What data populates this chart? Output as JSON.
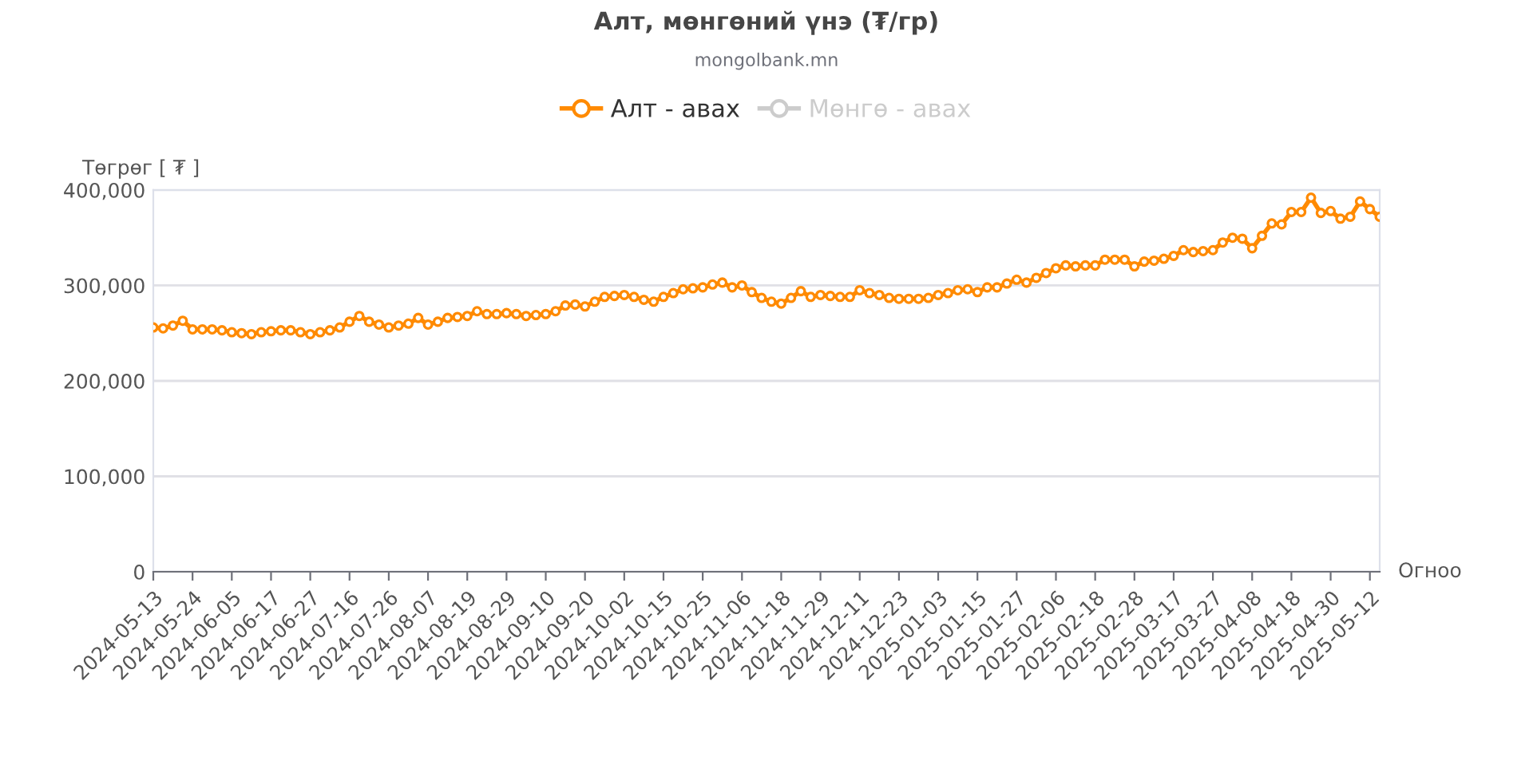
{
  "chart_data": {
    "type": "line",
    "title": "Алт, мөнгөний үнэ (₮/гр)",
    "subtitle": "mongolbank.mn",
    "ylabel": "Төгрөг [ ₮ ]",
    "xlabel": "Огноо",
    "categories": [
      "2024-05-13",
      null,
      null,
      null,
      "2024-05-24",
      null,
      null,
      null,
      "2024-06-05",
      null,
      null,
      null,
      "2024-06-17",
      null,
      null,
      null,
      "2024-06-27",
      null,
      null,
      null,
      "2024-07-16",
      null,
      null,
      null,
      "2024-07-26",
      null,
      null,
      null,
      "2024-08-07",
      null,
      null,
      null,
      "2024-08-19",
      null,
      null,
      null,
      "2024-08-29",
      null,
      null,
      null,
      "2024-09-10",
      null,
      null,
      null,
      "2024-09-20",
      null,
      null,
      null,
      "2024-10-02",
      null,
      null,
      null,
      "2024-10-15",
      null,
      null,
      null,
      "2024-10-25",
      null,
      null,
      null,
      "2024-11-06",
      null,
      null,
      null,
      "2024-11-18",
      null,
      null,
      null,
      "2024-11-29",
      null,
      null,
      null,
      "2024-12-11",
      null,
      null,
      null,
      "2024-12-23",
      null,
      null,
      null,
      "2025-01-03",
      null,
      null,
      null,
      "2025-01-15",
      null,
      null,
      null,
      "2025-01-27",
      null,
      null,
      null,
      "2025-02-06",
      null,
      null,
      null,
      "2025-02-18",
      null,
      null,
      null,
      "2025-02-28",
      null,
      null,
      null,
      "2025-03-17",
      null,
      null,
      null,
      "2025-03-27",
      null,
      null,
      null,
      "2025-04-08",
      null,
      null,
      null,
      "2025-04-18",
      null,
      null,
      null,
      "2025-04-30",
      null,
      null,
      null,
      "2025-05-12",
      null
    ],
    "series": [
      {
        "name": "Алт - авах",
        "color": "#ff8a00",
        "values": [
          256000,
          255000,
          258000,
          263000,
          254000,
          254000,
          254000,
          253000,
          251000,
          250000,
          249000,
          251000,
          252000,
          253000,
          253000,
          251000,
          249000,
          251000,
          253000,
          256000,
          262000,
          268000,
          262000,
          259000,
          256000,
          258000,
          260000,
          266000,
          259000,
          262000,
          266000,
          267000,
          268000,
          273000,
          270000,
          270000,
          271000,
          270000,
          268000,
          269000,
          270000,
          273000,
          279000,
          280000,
          278000,
          283000,
          288000,
          289000,
          290000,
          288000,
          285000,
          283000,
          288000,
          292000,
          296000,
          297000,
          298000,
          301000,
          303000,
          298000,
          300000,
          293000,
          287000,
          283000,
          281000,
          287000,
          294000,
          288000,
          290000,
          289000,
          288000,
          288000,
          295000,
          292000,
          290000,
          287000,
          286000,
          286000,
          286000,
          287000,
          290000,
          292000,
          295000,
          296000,
          293000,
          298000,
          298000,
          302000,
          306000,
          303000,
          308000,
          313000,
          318000,
          321000,
          320000,
          321000,
          321000,
          327000,
          327000,
          327000,
          320000,
          325000,
          326000,
          328000,
          331000,
          337000,
          335000,
          336000,
          337000,
          345000,
          350000,
          349000,
          339000,
          352000,
          365000,
          364000,
          377000,
          377000,
          392000,
          376000,
          378000,
          370000,
          372000,
          388000,
          380000,
          372000
        ]
      },
      {
        "name": "Мөнгө - авах",
        "color": "#cccccc",
        "values": [
          null,
          null,
          null,
          null,
          null,
          null,
          null,
          null,
          null,
          null,
          null,
          null,
          null,
          null,
          null,
          null,
          null,
          null,
          null,
          null,
          null,
          null,
          null,
          null,
          null,
          null,
          null,
          null,
          null,
          null,
          null,
          null,
          null,
          null,
          null,
          null,
          null,
          null,
          null,
          null,
          null,
          null,
          null,
          null,
          null,
          null,
          null,
          null,
          null,
          null,
          null,
          null,
          null,
          null,
          null,
          null,
          null,
          null,
          null,
          null,
          null,
          null,
          null,
          null,
          null,
          null,
          null,
          null,
          null,
          null,
          null,
          null,
          null,
          null,
          null,
          null,
          null,
          null,
          null,
          null,
          null,
          null,
          null,
          null,
          null,
          null,
          null,
          null,
          null,
          null,
          null,
          null,
          null,
          null,
          null,
          null,
          null,
          null,
          null,
          null,
          null,
          null,
          null,
          null,
          null,
          null,
          null,
          null,
          null,
          null,
          null,
          null,
          null,
          null,
          null,
          null,
          null,
          null,
          null,
          null,
          null,
          null,
          null,
          null,
          null,
          null
        ]
      }
    ],
    "ylim": [
      0,
      400000
    ],
    "yticks": [
      0,
      {
        "value": 100000,
        "label": "100,000"
      },
      {
        "value": 200000,
        "label": "200,000"
      },
      {
        "value": 300000,
        "label": "300,000"
      },
      {
        "value": 400000,
        "label": "400,000"
      }
    ],
    "grid": "y",
    "legend": "top",
    "marker": "circle",
    "line_style": "solid"
  }
}
